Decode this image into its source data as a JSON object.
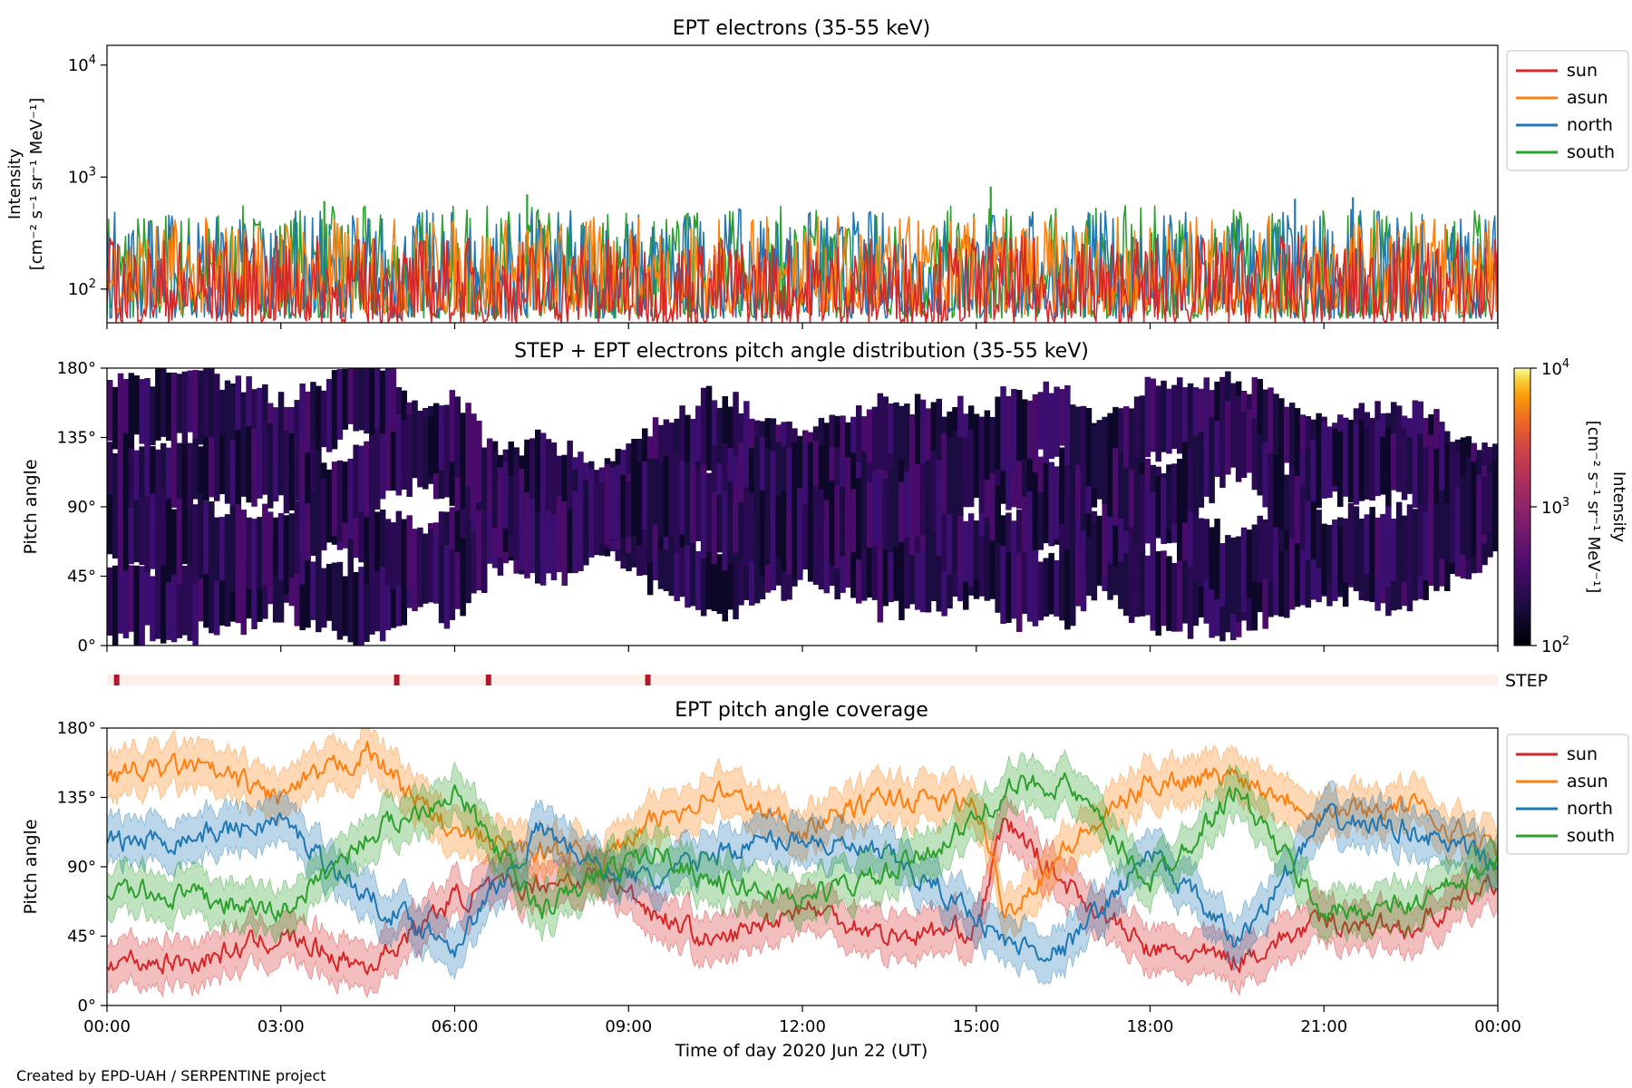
{
  "footer": {
    "credit": "Created by EPD-UAH / SERPENTINE project"
  },
  "chart_data": [
    {
      "panel": "intensity",
      "type": "line",
      "title": "EPT electrons (35-55 keV)",
      "ylabel": "Intensity",
      "ylabel_units": "[cm⁻² s⁻¹ sr⁻¹ MeV⁻¹]",
      "yscale": "log",
      "ylim": [
        50,
        15000
      ],
      "yticks": [
        "10^2",
        "10^3",
        "10^4"
      ],
      "xlim": [
        "2020-06-22T00:00",
        "2020-06-23T00:00"
      ],
      "legend_position": "outside-right",
      "series": [
        {
          "name": "sun",
          "color": "#d62728",
          "typical_range": [
            50,
            300
          ],
          "peaks": []
        },
        {
          "name": "asun",
          "color": "#ff7f0e",
          "typical_range": [
            60,
            450
          ],
          "peaks": []
        },
        {
          "name": "north",
          "color": "#1f77b4",
          "typical_range": [
            55,
            520
          ],
          "peaks": [
            {
              "x": "2020-06-22T21:30",
              "y": 660
            },
            {
              "x": "2020-06-22T20:30",
              "y": 640
            }
          ]
        },
        {
          "name": "south",
          "color": "#2ca02c",
          "typical_range": [
            55,
            560
          ],
          "peaks": [
            {
              "x": "2020-06-22T15:15",
              "y": 820
            },
            {
              "x": "2020-06-22T07:15",
              "y": 700
            },
            {
              "x": "2020-06-22T03:45",
              "y": 610
            }
          ]
        }
      ]
    },
    {
      "panel": "pad",
      "type": "heatmap",
      "title": "STEP + EPT electrons pitch angle distribution (35-55 keV)",
      "ylabel": "Pitch angle",
      "yticks": [
        "0°",
        "45°",
        "90°",
        "135°",
        "180°"
      ],
      "ylim": [
        0,
        180
      ],
      "xlim": [
        "2020-06-22T00:00",
        "2020-06-23T00:00"
      ],
      "colorbar": {
        "label": "Intensity",
        "label_units": "[cm⁻² s⁻¹ sr⁻¹ MeV⁻¹]",
        "scale": "log",
        "range": [
          100,
          10000
        ],
        "ticks": [
          "10^2",
          "10^3",
          "10^4"
        ],
        "colormap": "inferno"
      },
      "typical_intensity": [
        100,
        250
      ]
    },
    {
      "panel": "step-availability",
      "type": "bar",
      "label": "STEP",
      "marker_color": "#b2182b",
      "band_color": "#fdeeea",
      "markers": [
        "2020-06-22T00:10",
        "2020-06-22T05:00",
        "2020-06-22T06:35",
        "2020-06-22T09:20"
      ]
    },
    {
      "panel": "coverage",
      "type": "line",
      "title": "EPT pitch angle coverage",
      "ylabel": "Pitch angle",
      "xlabel": "Time of day 2020 Jun 22 (UT)",
      "yticks": [
        "0°",
        "45°",
        "90°",
        "135°",
        "180°"
      ],
      "ylim": [
        0,
        180
      ],
      "xticks": [
        "00:00",
        "03:00",
        "06:00",
        "09:00",
        "12:00",
        "15:00",
        "18:00",
        "21:00",
        "00:00"
      ],
      "xlim": [
        "2020-06-22T00:00",
        "2020-06-23T00:00"
      ],
      "legend_position": "outside-right",
      "band_halfwidth_deg": 15,
      "series": [
        {
          "name": "sun",
          "color": "#d62728",
          "x_hours": [
            0,
            1.5,
            3,
            4.5,
            6,
            7.5,
            8.5,
            9.5,
            10.5,
            12,
            13.5,
            15,
            15.5,
            16.5,
            18,
            19.5,
            21,
            22.5,
            24
          ],
          "y_deg": [
            30,
            28,
            45,
            25,
            70,
            80,
            85,
            60,
            40,
            65,
            45,
            50,
            120,
            80,
            35,
            30,
            55,
            50,
            80
          ]
        },
        {
          "name": "asun",
          "color": "#ff7f0e",
          "x_hours": [
            0,
            1.5,
            3,
            4.5,
            6,
            7.5,
            8.5,
            9.5,
            10.5,
            12,
            13.5,
            15,
            15.5,
            16.5,
            18,
            19.5,
            21,
            22.5,
            24
          ],
          "y_deg": [
            150,
            155,
            135,
            165,
            110,
            100,
            95,
            120,
            140,
            115,
            135,
            130,
            60,
            100,
            145,
            150,
            125,
            130,
            100
          ]
        },
        {
          "name": "north",
          "color": "#1f77b4",
          "x_hours": [
            0,
            1.5,
            3,
            4.5,
            6,
            7.5,
            8.5,
            9.5,
            10.5,
            12,
            13.5,
            15,
            15.5,
            16.5,
            18,
            19.5,
            21,
            22.5,
            24
          ],
          "y_deg": [
            105,
            110,
            120,
            70,
            40,
            115,
            90,
            80,
            100,
            110,
            95,
            60,
            40,
            35,
            100,
            40,
            120,
            115,
            90
          ]
        },
        {
          "name": "south",
          "color": "#2ca02c",
          "x_hours": [
            0,
            1.5,
            3,
            4.5,
            6,
            7.5,
            8.5,
            9.5,
            10.5,
            12,
            13.5,
            15,
            15.5,
            16.5,
            18,
            19.5,
            21,
            22.5,
            24
          ],
          "y_deg": [
            75,
            70,
            60,
            110,
            140,
            60,
            85,
            100,
            80,
            70,
            85,
            120,
            140,
            145,
            80,
            140,
            60,
            65,
            90
          ]
        }
      ]
    }
  ]
}
